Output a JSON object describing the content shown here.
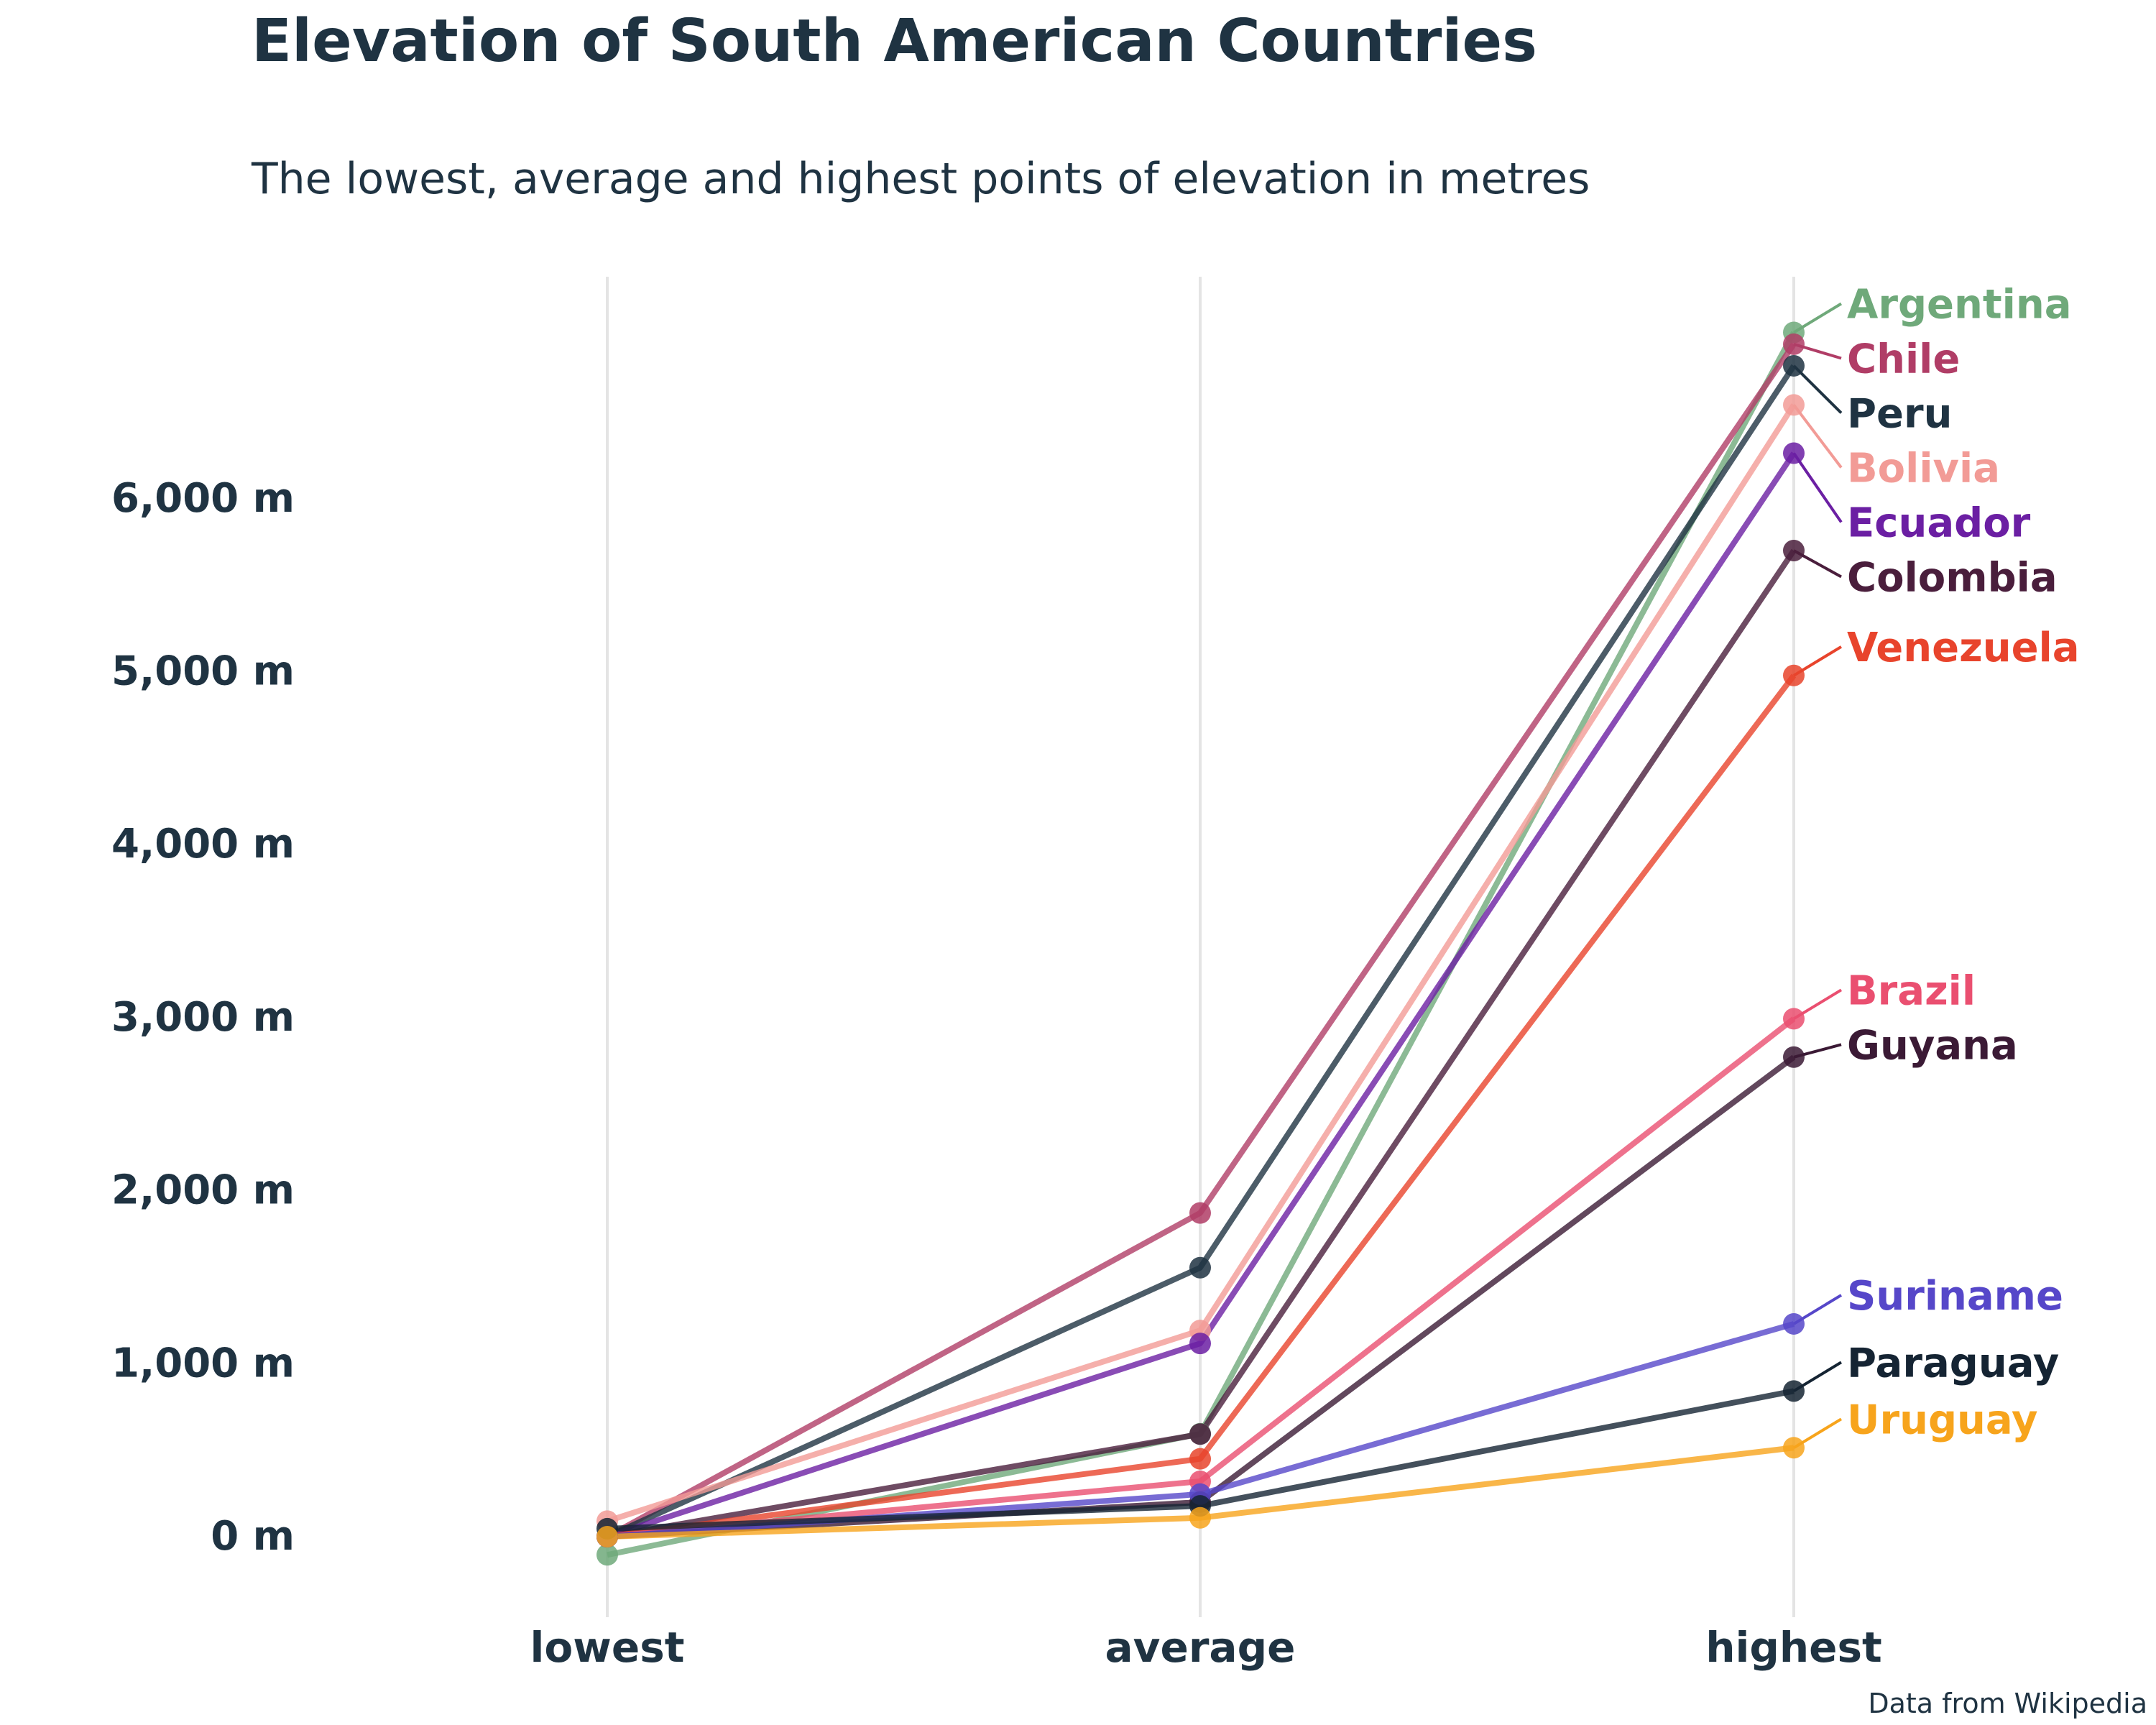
{
  "title": "Elevation of South American Countries",
  "subtitle": "The lowest, average and highest points of elevation in metres",
  "source": "Data from Wikipedia",
  "chart_data": {
    "type": "line",
    "title": "Elevation of South American Countries",
    "subtitle": "The lowest, average and highest points of elevation in metres",
    "categories": [
      "lowest",
      "average",
      "highest"
    ],
    "ylim": [
      -100,
      6700
    ],
    "yticks": [
      0,
      1000,
      2000,
      3000,
      4000,
      5000,
      6000
    ],
    "ytick_labels": [
      "0 m",
      "1,000 m",
      "2,000 m",
      "3,000 m",
      "4,000 m",
      "5,000 m",
      "6,000 m"
    ],
    "grid": "vertical lines at each category",
    "legend": "direct labels at right end of each line",
    "series": [
      {
        "name": "Argentina",
        "color": "#6fa97a",
        "values": [
          -105,
          595,
          6961
        ]
      },
      {
        "name": "Chile",
        "color": "#b03d66",
        "values": [
          0,
          1871,
          6893
        ]
      },
      {
        "name": "Peru",
        "color": "#1f3342",
        "values": [
          0,
          1555,
          6768
        ]
      },
      {
        "name": "Bolivia",
        "color": "#f29b96",
        "values": [
          90,
          1192,
          6542
        ]
      },
      {
        "name": "Ecuador",
        "color": "#6b1fa3",
        "values": [
          0,
          1117,
          6263
        ]
      },
      {
        "name": "Colombia",
        "color": "#4a1e3c",
        "values": [
          0,
          593,
          5700
        ]
      },
      {
        "name": "Venezuela",
        "color": "#e8442c",
        "values": [
          0,
          450,
          4978
        ]
      },
      {
        "name": "Brazil",
        "color": "#ea4f70",
        "values": [
          0,
          320,
          2994
        ]
      },
      {
        "name": "Guyana",
        "color": "#3b1a35",
        "values": [
          0,
          200,
          2772
        ]
      },
      {
        "name": "Suriname",
        "color": "#5647c9",
        "values": [
          0,
          246,
          1230
        ]
      },
      {
        "name": "Paraguay",
        "color": "#152433",
        "values": [
          46,
          178,
          842
        ]
      },
      {
        "name": "Uruguay",
        "color": "#f7a41c",
        "values": [
          0,
          109,
          514
        ]
      }
    ]
  }
}
